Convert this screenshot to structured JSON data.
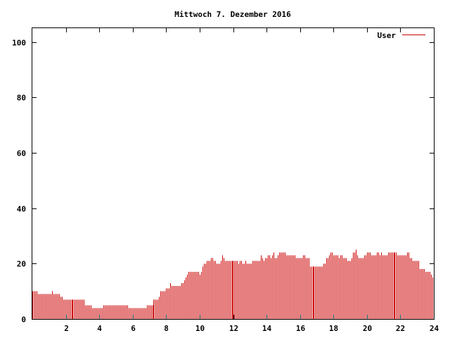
{
  "chart_data": {
    "type": "bar",
    "title": "Mittwoch 7. Dezember 2016",
    "xlabel": "",
    "ylabel": "",
    "xlim": [
      0,
      24
    ],
    "ylim": [
      0,
      105
    ],
    "x_ticks": [
      2,
      4,
      6,
      8,
      10,
      12,
      14,
      16,
      18,
      20,
      22,
      24
    ],
    "y_ticks": [
      0,
      20,
      40,
      60,
      80,
      100
    ],
    "legend_position": "top-right",
    "grid": false,
    "series": [
      {
        "name": "User",
        "color": "#cc0000",
        "interval_hours": 0.083333,
        "values": [
          10,
          10,
          10,
          10,
          9,
          9,
          9,
          9,
          9,
          9,
          9,
          9,
          9,
          9,
          10,
          9,
          9,
          9,
          9,
          9,
          8,
          8,
          7,
          7,
          7,
          7,
          7,
          7,
          7,
          7,
          7,
          7,
          7,
          7,
          7,
          7,
          7,
          7,
          5,
          5,
          5,
          5,
          5,
          4,
          4,
          4,
          4,
          4,
          4,
          4,
          4,
          5,
          5,
          5,
          5,
          5,
          5,
          5,
          5,
          5,
          5,
          5,
          5,
          5,
          5,
          5,
          5,
          5,
          5,
          4,
          4,
          4,
          4,
          4,
          4,
          4,
          4,
          4,
          4,
          4,
          4,
          4,
          5,
          5,
          5,
          5,
          5,
          7,
          7,
          7,
          7,
          8,
          10,
          10,
          10,
          10,
          11,
          11,
          11,
          13,
          12,
          12,
          12,
          12,
          12,
          12,
          12,
          13,
          13,
          14,
          15,
          16,
          17,
          17,
          17,
          17,
          17,
          17,
          17,
          17,
          16,
          17,
          19,
          20,
          20,
          21,
          21,
          21,
          22,
          22,
          21,
          21,
          20,
          20,
          20,
          21,
          23,
          22,
          21,
          21,
          21,
          21,
          21,
          21,
          21,
          21,
          21,
          21,
          20,
          21,
          21,
          20,
          20,
          21,
          20,
          20,
          20,
          20,
          21,
          21,
          21,
          21,
          21,
          21,
          23,
          22,
          21,
          22,
          22,
          23,
          23,
          22,
          23,
          24,
          22,
          22,
          23,
          24,
          24,
          24,
          24,
          24,
          23,
          23,
          23,
          23,
          23,
          23,
          23,
          22,
          22,
          22,
          22,
          22,
          23,
          23,
          22,
          22,
          22,
          19,
          19,
          19,
          19,
          19,
          19,
          19,
          19,
          19,
          19,
          20,
          20,
          22,
          22,
          23,
          24,
          24,
          23,
          23,
          23,
          23,
          22,
          23,
          23,
          22,
          22,
          22,
          21,
          21,
          21,
          22,
          24,
          24,
          25,
          23,
          22,
          22,
          22,
          22,
          23,
          23,
          24,
          24,
          24,
          23,
          23,
          23,
          23,
          24,
          24,
          23,
          24,
          23,
          23,
          23,
          23,
          24,
          24,
          24,
          24,
          24,
          24,
          24,
          23,
          23,
          23,
          23,
          23,
          23,
          23,
          24,
          24,
          22,
          22,
          21,
          21,
          21,
          21,
          21,
          18,
          18,
          18,
          18,
          17,
          17,
          17,
          17,
          16,
          15,
          14
        ]
      }
    ]
  }
}
